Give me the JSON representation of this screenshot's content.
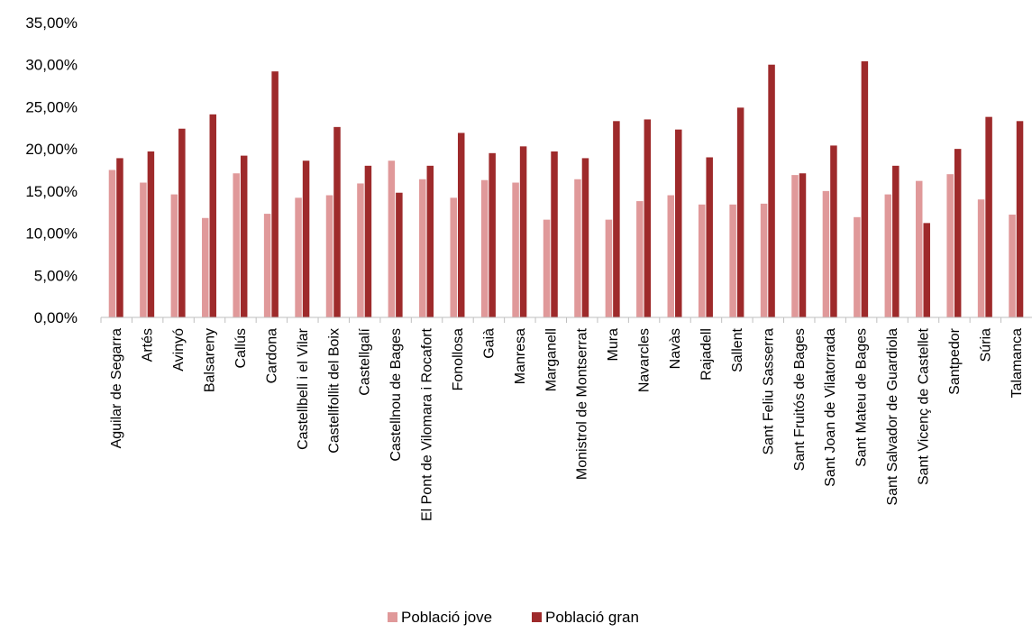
{
  "chart_data": {
    "type": "bar",
    "categories": [
      "Aguilar de Segarra",
      "Artés",
      "Avinyó",
      "Balsareny",
      "Callús",
      "Cardona",
      "Castellbell i el Vilar",
      "Castellfollit del Boix",
      "Castellgalí",
      "Castellnou de Bages",
      "El Pont de Vilomara i Rocafort",
      "Fonollosa",
      "Gaià",
      "Manresa",
      "Marganell",
      "Monistrol de Montserrat",
      "Mura",
      "Navarcles",
      "Navàs",
      "Rajadell",
      "Sallent",
      "Sant Feliu Sasserra",
      "Sant Fruitós de Bages",
      "Sant Joan de Vilatorrada",
      "Sant Mateu de Bages",
      "Sant Salvador de Guardiola",
      "Sant Vicenç de Castellet",
      "Santpedor",
      "Súria",
      "Talamanca"
    ],
    "series": [
      {
        "name": "Població jove",
        "color": "#e0999a",
        "values": [
          17.5,
          16.0,
          14.6,
          11.8,
          17.1,
          12.3,
          14.2,
          14.5,
          15.9,
          18.6,
          16.4,
          14.2,
          16.3,
          16.0,
          11.6,
          16.4,
          11.6,
          13.8,
          14.5,
          13.4,
          13.4,
          13.5,
          16.9,
          15.0,
          11.9,
          14.6,
          16.2,
          17.0,
          14.0,
          12.2
        ]
      },
      {
        "name": "Població gran",
        "color": "#9e2a2b",
        "values": [
          18.9,
          19.7,
          22.4,
          24.1,
          19.2,
          29.2,
          18.6,
          22.6,
          18.0,
          14.8,
          18.0,
          21.9,
          19.5,
          20.3,
          19.7,
          18.9,
          23.3,
          23.5,
          22.3,
          19.0,
          24.9,
          30.0,
          17.1,
          20.4,
          30.4,
          18.0,
          11.2,
          20.0,
          23.8,
          23.3
        ]
      }
    ],
    "y_ticks": [
      "0,00%",
      "5,00%",
      "10,00%",
      "15,00%",
      "20,00%",
      "25,00%",
      "30,00%",
      "35,00%"
    ],
    "ylim": [
      0,
      35
    ],
    "legend_position": "bottom",
    "grid": false
  }
}
